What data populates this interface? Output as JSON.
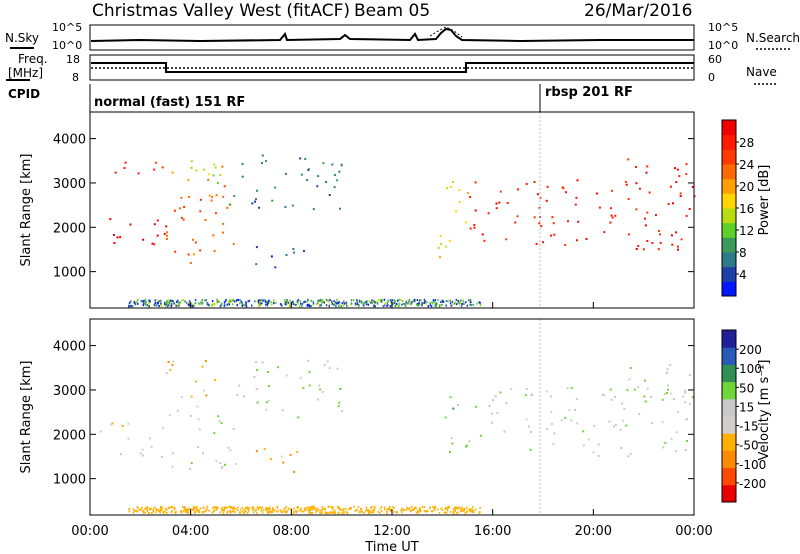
{
  "header": {
    "title": "Christmas Valley West (fitACF)",
    "beam": "Beam 05",
    "date": "26/Mar/2016"
  },
  "top_panels": {
    "nsky_label": "N.Sky",
    "nsearch_label": "N.Search",
    "nsky_ticks": [
      "10^5",
      "10^0"
    ],
    "nsky_ticks_right": [
      "10^5",
      "10^0"
    ],
    "freq_label_1": "Freq.",
    "freq_label_2": "[MHz]",
    "freq_ticks": [
      "18",
      "8"
    ],
    "nave_label": "Nave",
    "nave_ticks": [
      "60",
      "0"
    ],
    "cpid_label": "CPID",
    "cpid_mode_1": "normal (fast) 151 RF",
    "cpid_mode_2": "rbsp 201 RF"
  },
  "colors": {
    "power_scale": [
      "#0018ff",
      "#1e3fa8",
      "#2d7a8a",
      "#3a9b5a",
      "#5fd028",
      "#b8dc10",
      "#ffd600",
      "#ffa000",
      "#ff6a00",
      "#ff3a00",
      "#ff1a00",
      "#f00000"
    ],
    "velocity_scale": [
      "#e80000",
      "#ff4800",
      "#ff8a00",
      "#ffb000",
      "#d2cfc8",
      "#c8c8c8",
      "#6fd53a",
      "#2f8f55",
      "#2a5ab8",
      "#1f1f9a"
    ]
  },
  "chart_data": [
    {
      "type": "heatmap",
      "name": "power",
      "ylabel": "Slant Range [km]",
      "colorbar_label": "Power [dB]",
      "colorbar_ticks": [
        "28",
        "24",
        "20",
        "16",
        "12",
        "8",
        "4"
      ],
      "y_ticks": [
        "4000",
        "3000",
        "2000",
        "1000"
      ],
      "ylim": [
        180,
        4600
      ],
      "xlim_hours": [
        0,
        24
      ],
      "grid": false,
      "regions": [
        {
          "t0": 0.3,
          "t1": 3.0,
          "r0": 1500,
          "r1": 2300,
          "level": 11
        },
        {
          "t0": 0.3,
          "t1": 3.0,
          "r0": 3200,
          "r1": 3600,
          "level": 10
        },
        {
          "t0": 3.0,
          "t1": 5.8,
          "r0": 1200,
          "r1": 3400,
          "level": 8
        },
        {
          "t0": 3.5,
          "t1": 5.5,
          "r0": 3000,
          "r1": 3700,
          "level": 5
        },
        {
          "t0": 5.5,
          "t1": 10.0,
          "r0": 2400,
          "r1": 3700,
          "level": 2
        },
        {
          "t0": 6.3,
          "t1": 8.5,
          "r0": 1100,
          "r1": 1700,
          "level": 1
        },
        {
          "t0": 13.8,
          "t1": 15.0,
          "r0": 1300,
          "r1": 3200,
          "level": 6
        },
        {
          "t0": 15.0,
          "t1": 24.0,
          "r0": 1500,
          "r1": 3100,
          "level": 10
        },
        {
          "t0": 21.0,
          "t1": 24.0,
          "r0": 3000,
          "r1": 3600,
          "level": 10
        }
      ]
    },
    {
      "type": "heatmap",
      "name": "velocity",
      "ylabel": "Slant Range [km]",
      "colorbar_label": "Velocity [m s⁻¹]",
      "colorbar_ticks": [
        "200",
        "100",
        "50",
        "15",
        "-15",
        "-50",
        "-100",
        "-200"
      ],
      "y_ticks": [
        "4000",
        "3000",
        "2000",
        "1000"
      ],
      "xlim_hours": [
        0,
        24
      ],
      "x_ticks": [
        "00:00",
        "04:00",
        "08:00",
        "12:00",
        "16:00",
        "20:00",
        "00:00"
      ],
      "xlabel": "Time UT",
      "regions": [
        {
          "t0": 0.3,
          "t1": 3.0,
          "r0": 1500,
          "r1": 2300,
          "level": 4
        },
        {
          "t0": 3.0,
          "t1": 5.8,
          "r0": 1200,
          "r1": 2600,
          "level": 5
        },
        {
          "t0": 3.0,
          "t1": 5.0,
          "r0": 2600,
          "r1": 3700,
          "level": 3
        },
        {
          "t0": 5.5,
          "t1": 10.0,
          "r0": 2400,
          "r1": 3700,
          "level": 5
        },
        {
          "t0": 6.3,
          "t1": 8.5,
          "r0": 1100,
          "r1": 1700,
          "level": 3
        },
        {
          "t0": 14.0,
          "t1": 15.0,
          "r0": 1500,
          "r1": 2900,
          "level": 6
        },
        {
          "t0": 15.0,
          "t1": 24.0,
          "r0": 1500,
          "r1": 3100,
          "level": 5
        },
        {
          "t0": 21.0,
          "t1": 24.0,
          "r0": 3000,
          "r1": 3600,
          "level": 5
        }
      ]
    }
  ]
}
